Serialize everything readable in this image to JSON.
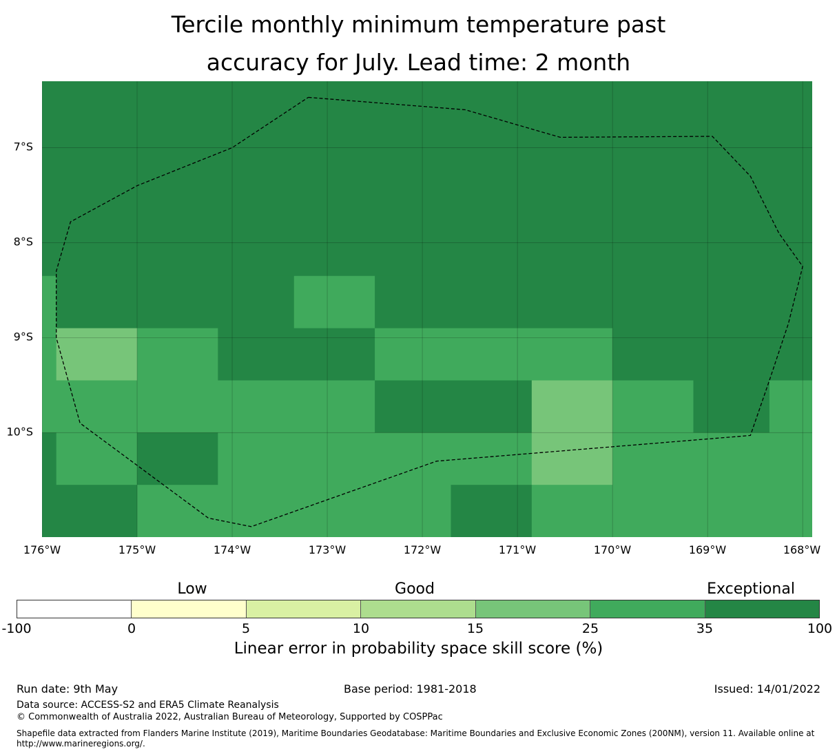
{
  "title": {
    "line1": "Tercile monthly minimum temperature past",
    "line2": "accuracy for July. Lead time: 2 month"
  },
  "map": {
    "lat_labels": [
      "7°S",
      "8°S",
      "9°S",
      "10°S"
    ],
    "lon_labels": [
      "176°W",
      "175°W",
      "174°W",
      "173°W",
      "172°W",
      "171°W",
      "170°W",
      "169°W",
      "168°W"
    ],
    "lat_range": [
      -11.1,
      -6.3
    ],
    "lon_range": [
      -176.0,
      -167.9
    ],
    "colors": {
      "exceptional": "#248645",
      "score_25_35": "#40aa5c",
      "score_15_25": "#77c579",
      "boundary": "#000000"
    },
    "cells": [
      {
        "lon": [
          -176.0,
          -167.9
        ],
        "lat": [
          -6.3,
          -8.35
        ],
        "class": "35-100"
      },
      {
        "lon": [
          -176.0,
          -175.85
        ],
        "lat": [
          -8.35,
          -8.9
        ],
        "class": "25-35"
      },
      {
        "lon": [
          -175.85,
          -173.35
        ],
        "lat": [
          -8.35,
          -8.9
        ],
        "class": "35-100"
      },
      {
        "lon": [
          -173.35,
          -172.5
        ],
        "lat": [
          -8.35,
          -8.9
        ],
        "class": "25-35"
      },
      {
        "lon": [
          -172.5,
          -167.9
        ],
        "lat": [
          -8.35,
          -8.9
        ],
        "class": "35-100"
      },
      {
        "lon": [
          -176.0,
          -175.85
        ],
        "lat": [
          -8.9,
          -9.45
        ],
        "class": "25-35"
      },
      {
        "lon": [
          -175.85,
          -175.0
        ],
        "lat": [
          -8.9,
          -9.45
        ],
        "class": "15-25"
      },
      {
        "lon": [
          -175.0,
          -174.15
        ],
        "lat": [
          -8.9,
          -9.45
        ],
        "class": "25-35"
      },
      {
        "lon": [
          -174.15,
          -172.5
        ],
        "lat": [
          -8.9,
          -9.45
        ],
        "class": "35-100"
      },
      {
        "lon": [
          -172.5,
          -170.0
        ],
        "lat": [
          -8.9,
          -9.45
        ],
        "class": "25-35"
      },
      {
        "lon": [
          -170.0,
          -167.9
        ],
        "lat": [
          -8.9,
          -9.45
        ],
        "class": "35-100"
      },
      {
        "lon": [
          -176.0,
          -172.5
        ],
        "lat": [
          -9.45,
          -10.0
        ],
        "class": "25-35"
      },
      {
        "lon": [
          -172.5,
          -170.85
        ],
        "lat": [
          -9.45,
          -10.0
        ],
        "class": "35-100"
      },
      {
        "lon": [
          -170.85,
          -170.0
        ],
        "lat": [
          -9.45,
          -10.0
        ],
        "class": "15-25"
      },
      {
        "lon": [
          -170.0,
          -169.15
        ],
        "lat": [
          -9.45,
          -10.0
        ],
        "class": "25-35"
      },
      {
        "lon": [
          -169.15,
          -168.35
        ],
        "lat": [
          -9.45,
          -10.0
        ],
        "class": "35-100"
      },
      {
        "lon": [
          -168.35,
          -167.9
        ],
        "lat": [
          -9.45,
          -10.0
        ],
        "class": "25-35"
      },
      {
        "lon": [
          -176.0,
          -175.85
        ],
        "lat": [
          -10.0,
          -10.55
        ],
        "class": "35-100"
      },
      {
        "lon": [
          -175.85,
          -175.0
        ],
        "lat": [
          -10.0,
          -10.55
        ],
        "class": "25-35"
      },
      {
        "lon": [
          -175.0,
          -174.15
        ],
        "lat": [
          -10.0,
          -10.55
        ],
        "class": "35-100"
      },
      {
        "lon": [
          -174.15,
          -170.85
        ],
        "lat": [
          -10.0,
          -10.55
        ],
        "class": "25-35"
      },
      {
        "lon": [
          -170.85,
          -170.0
        ],
        "lat": [
          -10.0,
          -10.55
        ],
        "class": "15-25"
      },
      {
        "lon": [
          -170.0,
          -167.9
        ],
        "lat": [
          -10.0,
          -10.55
        ],
        "class": "25-35"
      },
      {
        "lon": [
          -176.0,
          -175.0
        ],
        "lat": [
          -10.55,
          -11.1
        ],
        "class": "35-100"
      },
      {
        "lon": [
          -175.0,
          -171.7
        ],
        "lat": [
          -10.55,
          -11.1
        ],
        "class": "25-35"
      },
      {
        "lon": [
          -171.7,
          -170.85
        ],
        "lat": [
          -10.55,
          -11.1
        ],
        "class": "35-100"
      },
      {
        "lon": [
          -170.85,
          -167.9
        ],
        "lat": [
          -10.55,
          -11.1
        ],
        "class": "25-35"
      }
    ],
    "eez_boundary": [
      [
        -173.2,
        -6.47
      ],
      [
        -171.55,
        -6.6
      ],
      [
        -170.55,
        -6.89
      ],
      [
        -168.95,
        -6.88
      ],
      [
        -168.55,
        -7.3
      ],
      [
        -168.25,
        -7.9
      ],
      [
        -168.0,
        -8.25
      ],
      [
        -168.15,
        -8.85
      ],
      [
        -168.35,
        -9.45
      ],
      [
        -168.55,
        -10.03
      ],
      [
        -171.85,
        -10.3
      ],
      [
        -173.8,
        -10.99
      ],
      [
        -174.25,
        -10.9
      ],
      [
        -175.6,
        -9.9
      ],
      [
        -175.85,
        -9.0
      ],
      [
        -175.85,
        -8.3
      ],
      [
        -175.7,
        -7.78
      ],
      [
        -175.0,
        -7.4
      ],
      [
        -174.0,
        -7.0
      ],
      [
        -173.2,
        -6.47
      ]
    ]
  },
  "colorbar": {
    "category_labels": [
      "Low",
      "Good",
      "Exceptional"
    ],
    "bins": [
      {
        "range": "-100 to 0",
        "color": "#ffffff"
      },
      {
        "range": "0 to 5",
        "color": "#ffffcc"
      },
      {
        "range": "5 to 10",
        "color": "#d9f0a3"
      },
      {
        "range": "10 to 15",
        "color": "#addd8e"
      },
      {
        "range": "15 to 25",
        "color": "#77c579"
      },
      {
        "range": "25 to 35",
        "color": "#40aa5c"
      },
      {
        "range": "35 to 100",
        "color": "#248645"
      }
    ],
    "ticks": [
      "-100",
      "0",
      "5",
      "10",
      "15",
      "25",
      "35",
      "100"
    ],
    "label": "Linear error in probability space skill score (%)"
  },
  "footer": {
    "run_date": "Run date: 9th May",
    "base_period": "Base period: 1981-2018",
    "issued": "Issued: 14/01/2022",
    "data_source": "Data source: ACCESS-S2 and ERA5 Climate Reanalysis",
    "copyright": "© Commonwealth of Australia 2022, Australian Bureau of Meteorology, Supported by COSPPac",
    "shapefile_line1": "Shapefile data extracted from Flanders Marine Institute (2019), Maritime Boundaries Geodatabase: Maritime Boundaries and Exclusive Economic Zones (200NM), version 11. Available online at",
    "shapefile_line2": "http://www.marineregions.org/."
  }
}
